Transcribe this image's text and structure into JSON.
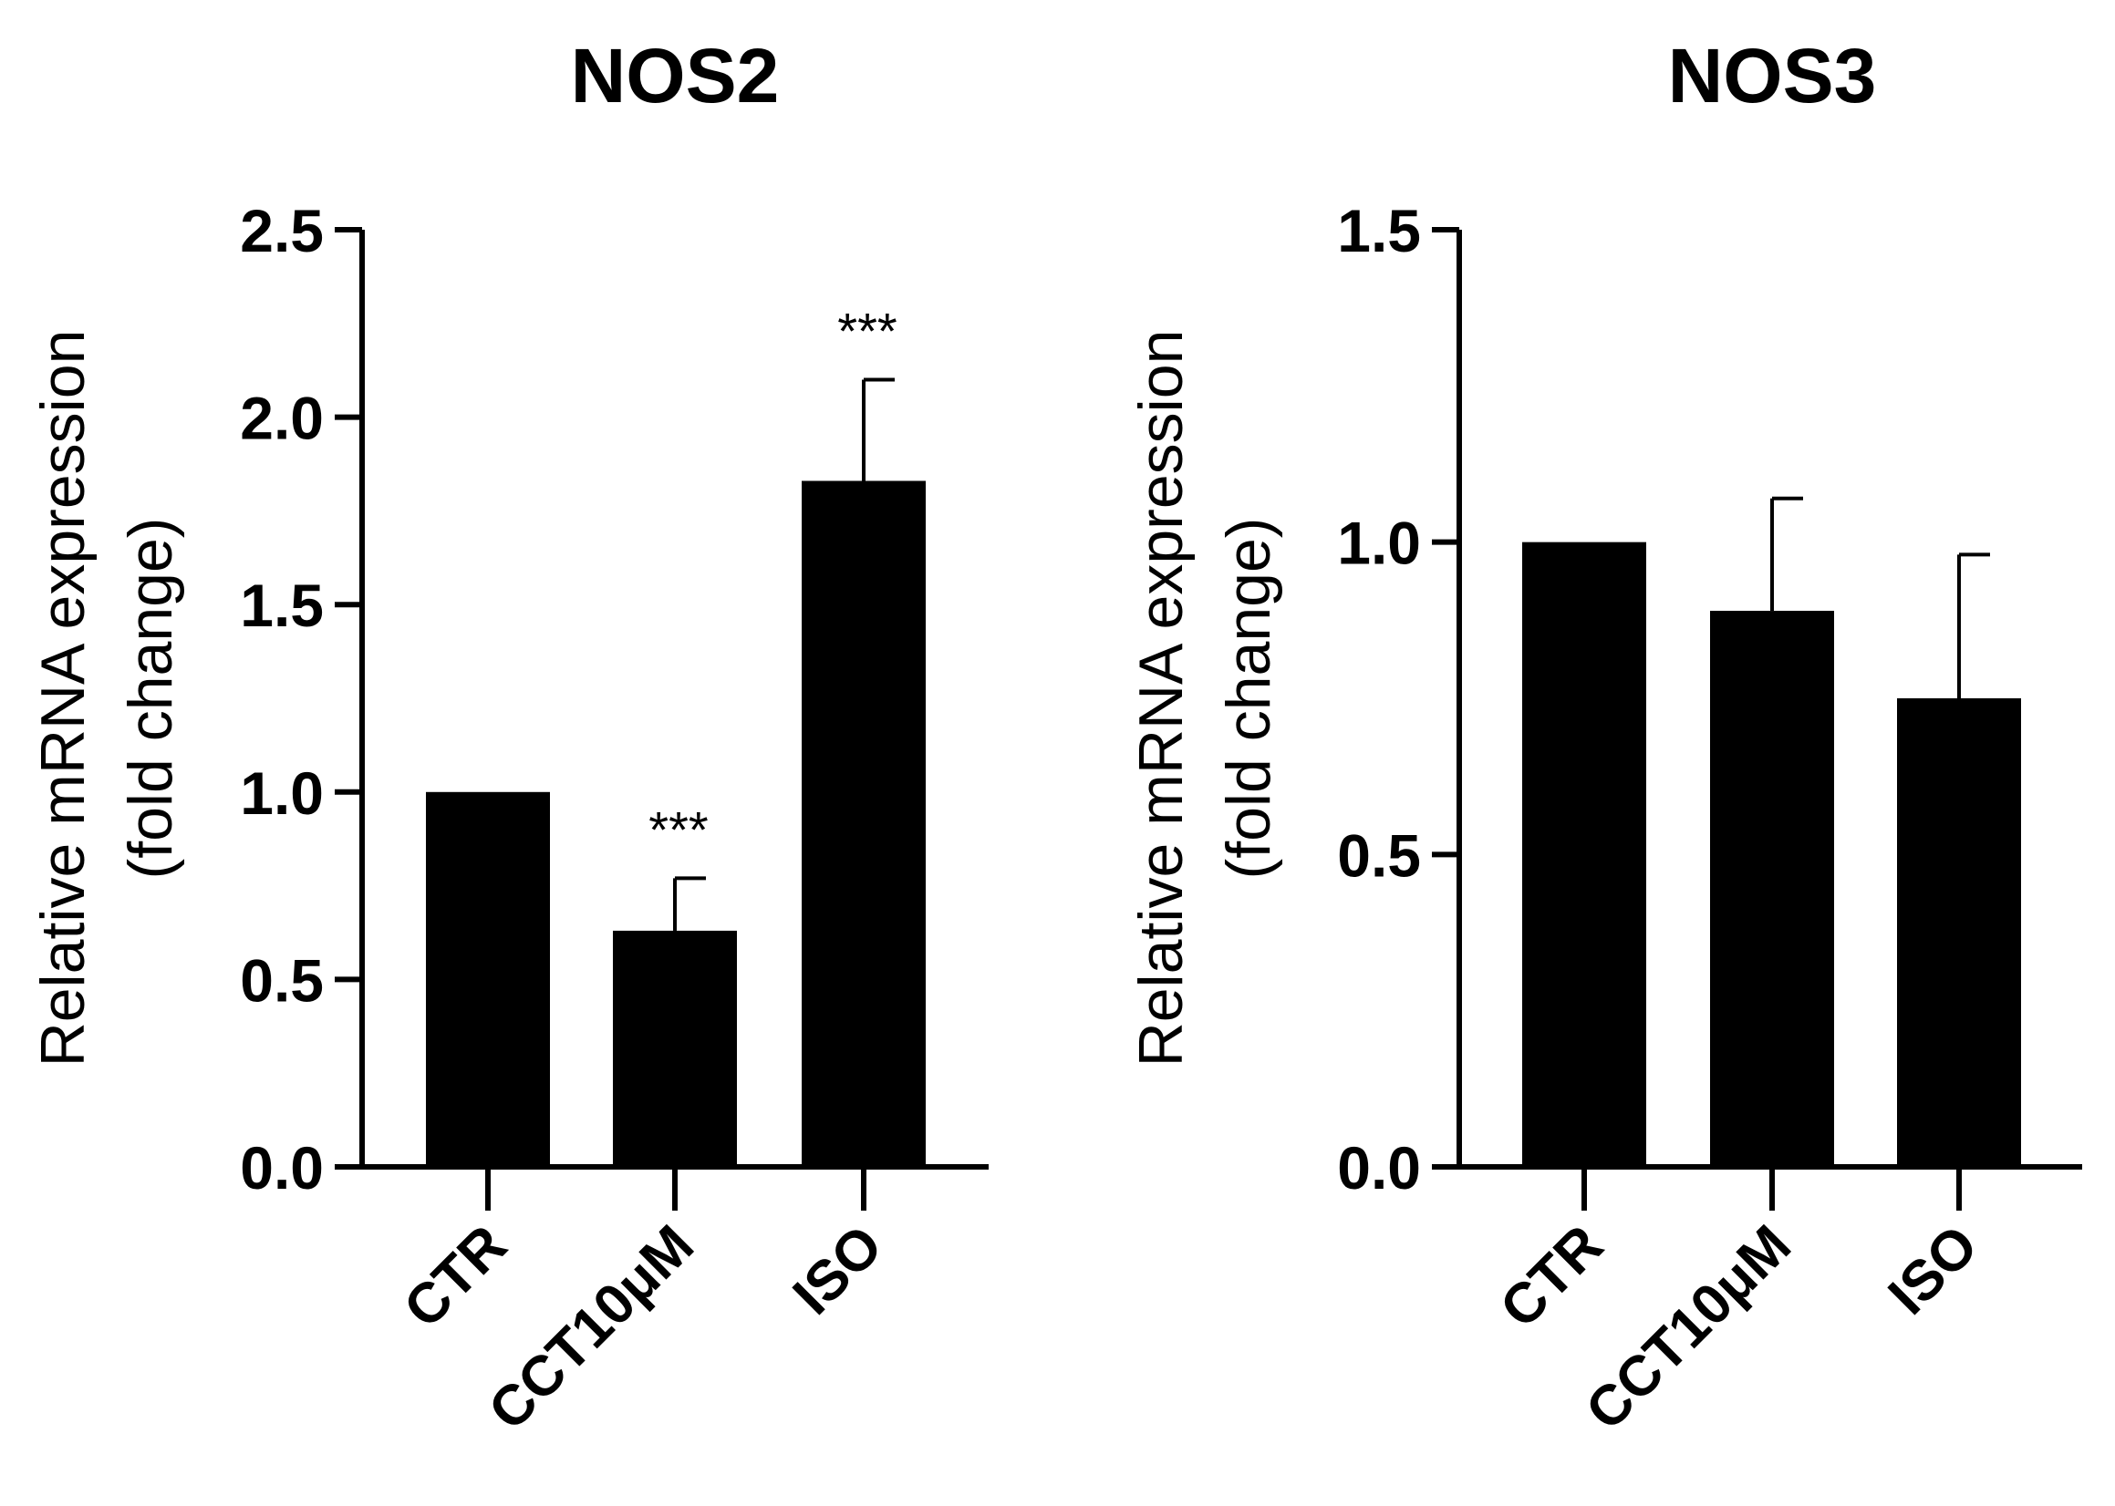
{
  "colors": {
    "bar": "#000000",
    "axis": "#000000",
    "background": "#ffffff"
  },
  "chart_data": [
    {
      "type": "bar",
      "title": "NOS2",
      "ylabel_lines": [
        "Relative mRNA expression",
        "(fold change)"
      ],
      "categories": [
        "CTR",
        "CCT10μM",
        "ISO"
      ],
      "values": [
        1.0,
        0.63,
        1.83
      ],
      "errors": [
        0,
        0.14,
        0.27
      ],
      "annotations": [
        "",
        "***",
        "***"
      ],
      "ylim": [
        0,
        2.5
      ],
      "yticks": [
        "0.0",
        "0.5",
        "1.0",
        "1.5",
        "2.0",
        "2.5"
      ],
      "grid": false
    },
    {
      "type": "bar",
      "title": "NOS3",
      "ylabel_lines": [
        "Relative mRNA expression",
        "(fold change)"
      ],
      "categories": [
        "CTR",
        "CCT10μM",
        "ISO"
      ],
      "values": [
        1.0,
        0.89,
        0.75
      ],
      "errors": [
        0,
        0.18,
        0.23
      ],
      "annotations": [
        "",
        "",
        ""
      ],
      "ylim": [
        0,
        1.5
      ],
      "yticks": [
        "0.0",
        "0.5",
        "1.0",
        "1.5"
      ],
      "grid": false
    }
  ]
}
